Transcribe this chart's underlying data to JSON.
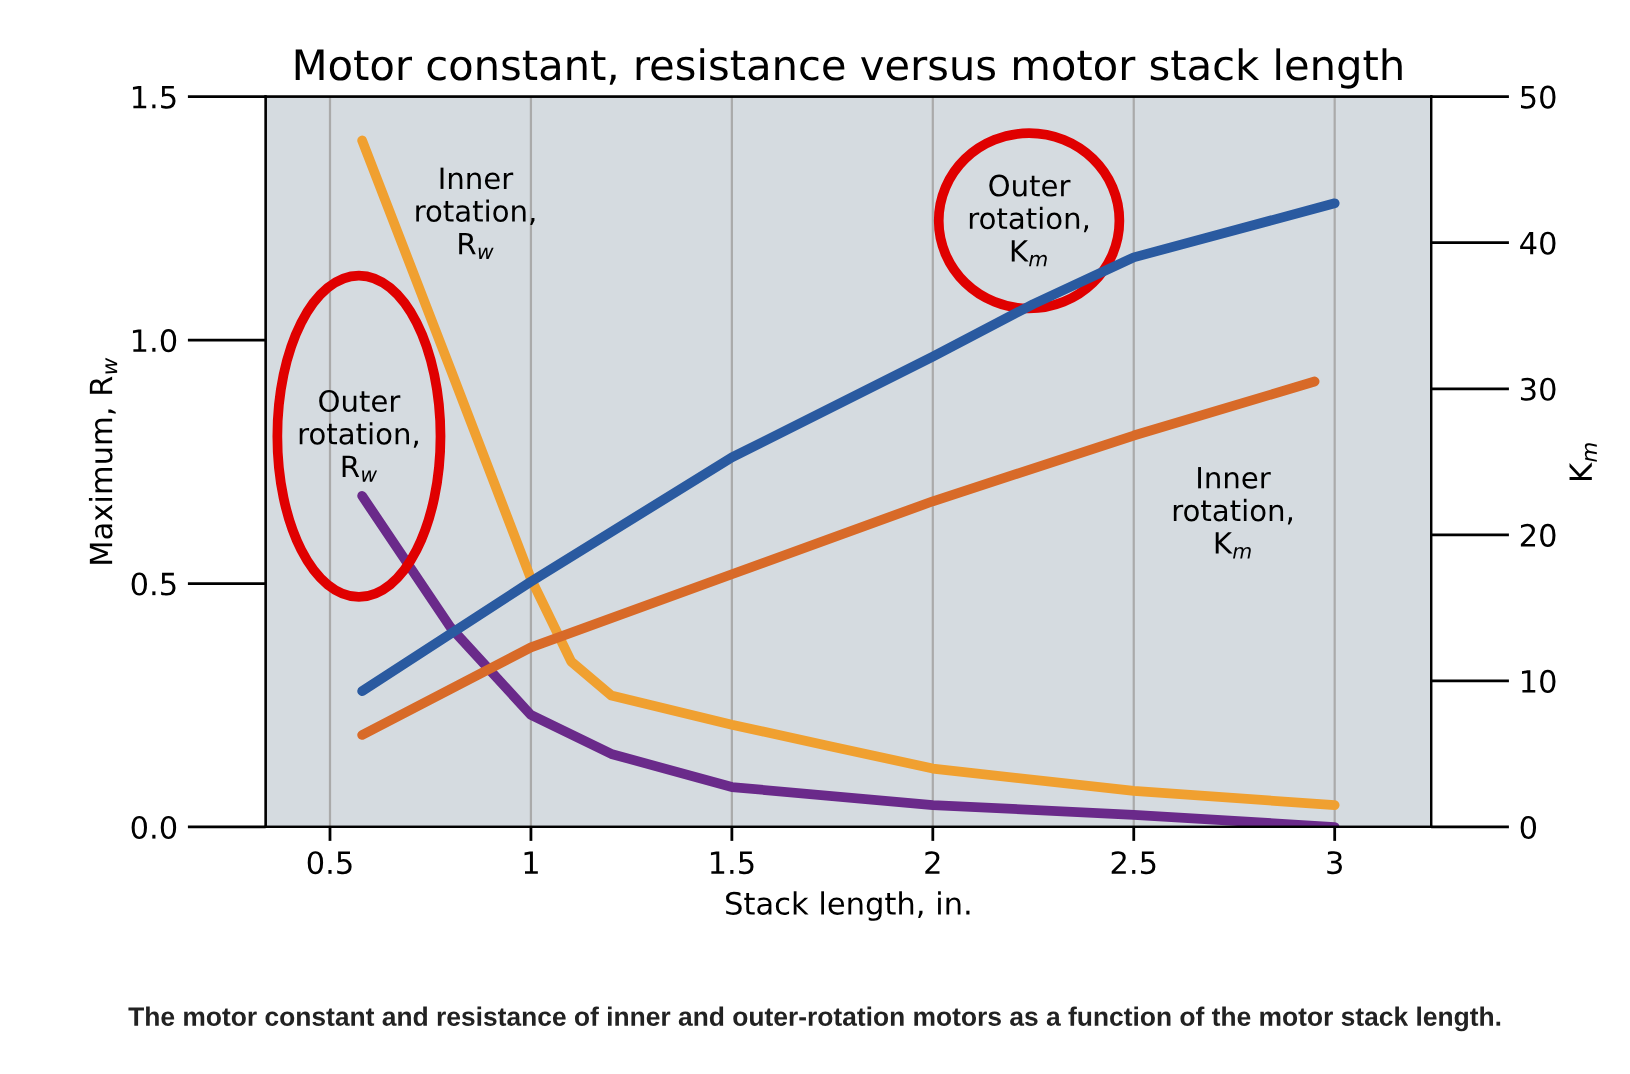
{
  "chart_data": {
    "type": "line",
    "title": "Motor constant, resistance versus motor stack length",
    "xlabel": "Stack length, in.",
    "ylabel": "Maximum, R$_{w}$",
    "y2label": "K$_{m}$",
    "xlim": [
      0.34,
      3.24
    ],
    "xticks": [
      0.5,
      1,
      1.5,
      2,
      2.5,
      3
    ],
    "ylim": [
      0,
      1.5
    ],
    "yticks": [
      {
        "value": 0,
        "label": "0.0"
      },
      {
        "value": 0.5,
        "label": "0.5"
      },
      {
        "value": 1,
        "label": "1.0"
      },
      {
        "value": 1.5,
        "label": "1.5"
      }
    ],
    "y2lim": [
      0,
      50
    ],
    "y2ticks": [
      0,
      10,
      20,
      30,
      40,
      50
    ],
    "grid": "x",
    "legend": false,
    "marker": "none",
    "line_style": "solid",
    "series": [
      {
        "name": "Inner\nrotation,\nR$_{w}$",
        "color": "#f0a030",
        "x": [
          0.58,
          0.8,
          1.0,
          1.1,
          1.2,
          1.3,
          1.5,
          1.75,
          2.0,
          2.5,
          3.0
        ],
        "values": [
          1.41,
          0.94,
          0.51,
          0.34,
          0.27,
          0.25,
          0.21,
          0.165,
          0.12,
          0.074,
          0.045
        ]
      },
      {
        "name": "Outer\nrotation,\nR$_{w}$",
        "color": "#6a2a8a",
        "x": [
          0.58,
          0.8,
          1.0,
          1.2,
          1.5,
          2.0,
          2.5,
          3.0
        ],
        "values": [
          0.68,
          0.41,
          0.23,
          0.15,
          0.082,
          0.045,
          0.025,
          0.0
        ]
      },
      {
        "name": "Outer\nrotation,\nK$_{m}$",
        "color": "#2a5aa0",
        "axis": "y2",
        "x": [
          0.58,
          1.0,
          1.5,
          2.0,
          2.25,
          2.5,
          3.0
        ],
        "values": [
          9.3,
          16.8,
          25.3,
          32.2,
          35.8,
          39.0,
          42.7
        ]
      },
      {
        "name": "Inner\nrotation,\nK$_{m}$",
        "color": "#d86a28",
        "axis": "y2",
        "x": [
          0.58,
          1.0,
          1.5,
          2.0,
          2.5,
          2.95
        ],
        "values": [
          6.3,
          12.3,
          17.3,
          22.3,
          26.8,
          30.5
        ]
      }
    ],
    "annotations": [
      "The motor constant and resistance of inner and outer-rotation motors as a function of the motor stack length."
    ]
  }
}
